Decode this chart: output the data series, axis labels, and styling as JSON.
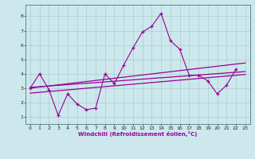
{
  "x_data": [
    0,
    1,
    2,
    3,
    4,
    5,
    6,
    7,
    8,
    9,
    10,
    11,
    12,
    13,
    14,
    15,
    16,
    17,
    18,
    19,
    20,
    21,
    22,
    23
  ],
  "y_main": [
    3.0,
    4.0,
    2.9,
    1.1,
    2.6,
    1.9,
    1.5,
    1.6,
    4.0,
    3.3,
    4.6,
    5.8,
    6.9,
    7.3,
    8.2,
    6.3,
    5.7,
    3.9,
    3.9,
    3.5,
    2.6,
    3.2,
    4.3,
    null
  ],
  "y_line1_start": 3.0,
  "y_line1_end": 4.75,
  "y_line2_start": 2.65,
  "y_line2_end": 3.95,
  "y_line3_start": 3.05,
  "y_line3_end": 4.15,
  "line_color": "#990099",
  "bg_color": "#cce8ec",
  "grid_color": "#aacccc",
  "xlabel": "Windchill (Refroidissement éolien,°C)",
  "ylim": [
    0.5,
    8.8
  ],
  "xlim": [
    -0.5,
    23.5
  ],
  "yticks": [
    1,
    2,
    3,
    4,
    5,
    6,
    7,
    8
  ],
  "xticks": [
    0,
    1,
    2,
    3,
    4,
    5,
    6,
    7,
    8,
    9,
    10,
    11,
    12,
    13,
    14,
    15,
    16,
    17,
    18,
    19,
    20,
    21,
    22,
    23
  ]
}
